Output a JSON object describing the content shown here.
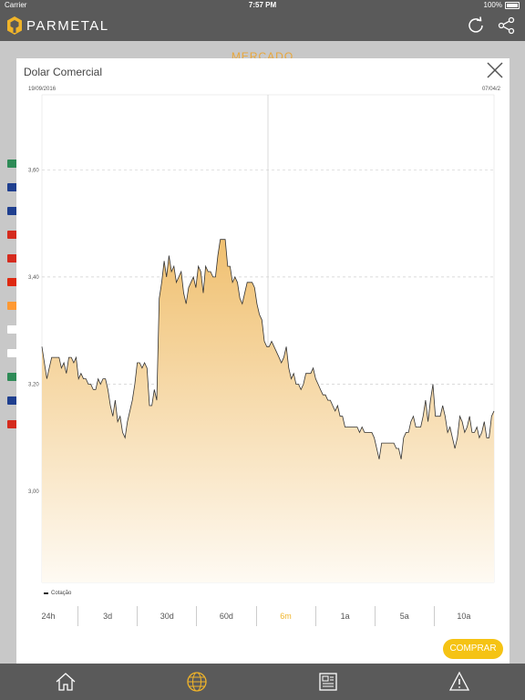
{
  "status_bar": {
    "carrier": "Carrier",
    "time": "7:57 PM",
    "battery": "100%"
  },
  "app": {
    "logo_text": "PARMETAL",
    "accent_color": "#f0b429",
    "bar_color": "#5a5a5a"
  },
  "nav": {
    "icons": [
      "refresh-icon",
      "share-icon"
    ]
  },
  "background_page": {
    "title": "MERCADO",
    "flag_colors": [
      "#2e8b57",
      "#1f3f8f",
      "#1f3f8f",
      "#d52b1e",
      "#d52b1e",
      "#de2910",
      "#ff9933",
      "#ffffff",
      "#ffffff",
      "#2e8b57",
      "#1f3f8f",
      "#d52b1e"
    ]
  },
  "modal": {
    "title": "Dolar Comercial",
    "date_start": "19/09/2016",
    "date_end": "07/04/2",
    "legend_label": "Cotação",
    "ranges": [
      {
        "label": "24h",
        "active": false
      },
      {
        "label": "3d",
        "active": false
      },
      {
        "label": "30d",
        "active": false
      },
      {
        "label": "60d",
        "active": false
      },
      {
        "label": "6m",
        "active": true
      },
      {
        "label": "1a",
        "active": false
      },
      {
        "label": "5a",
        "active": false
      },
      {
        "label": "10a",
        "active": false
      }
    ],
    "buy_button": "COMPRAR"
  },
  "chart_data": {
    "type": "area",
    "series": [
      {
        "name": "Cotação",
        "values": [
          3.27,
          3.24,
          3.21,
          3.23,
          3.25,
          3.25,
          3.25,
          3.25,
          3.23,
          3.24,
          3.22,
          3.25,
          3.25,
          3.24,
          3.25,
          3.21,
          3.22,
          3.21,
          3.21,
          3.2,
          3.2,
          3.19,
          3.19,
          3.21,
          3.2,
          3.21,
          3.21,
          3.19,
          3.16,
          3.14,
          3.17,
          3.13,
          3.14,
          3.11,
          3.1,
          3.13,
          3.15,
          3.17,
          3.2,
          3.24,
          3.24,
          3.23,
          3.24,
          3.23,
          3.16,
          3.16,
          3.19,
          3.17,
          3.36,
          3.39,
          3.43,
          3.4,
          3.44,
          3.41,
          3.42,
          3.39,
          3.4,
          3.41,
          3.37,
          3.35,
          3.38,
          3.39,
          3.4,
          3.38,
          3.42,
          3.41,
          3.37,
          3.42,
          3.41,
          3.41,
          3.4,
          3.4,
          3.44,
          3.47,
          3.47,
          3.47,
          3.42,
          3.42,
          3.39,
          3.4,
          3.39,
          3.36,
          3.35,
          3.37,
          3.39,
          3.39,
          3.39,
          3.38,
          3.35,
          3.33,
          3.32,
          3.28,
          3.27,
          3.27,
          3.28,
          3.27,
          3.26,
          3.25,
          3.24,
          3.25,
          3.27,
          3.23,
          3.21,
          3.22,
          3.2,
          3.2,
          3.19,
          3.2,
          3.22,
          3.22,
          3.22,
          3.23,
          3.21,
          3.2,
          3.19,
          3.18,
          3.18,
          3.17,
          3.17,
          3.16,
          3.15,
          3.16,
          3.14,
          3.14,
          3.12,
          3.12,
          3.12,
          3.12,
          3.12,
          3.12,
          3.11,
          3.12,
          3.11,
          3.11,
          3.11,
          3.11,
          3.1,
          3.08,
          3.06,
          3.09,
          3.09,
          3.09,
          3.09,
          3.09,
          3.09,
          3.08,
          3.08,
          3.06,
          3.1,
          3.11,
          3.11,
          3.13,
          3.14,
          3.12,
          3.12,
          3.12,
          3.14,
          3.17,
          3.13,
          3.17,
          3.2,
          3.14,
          3.14,
          3.14,
          3.16,
          3.14,
          3.11,
          3.12,
          3.1,
          3.08,
          3.1,
          3.14,
          3.13,
          3.11,
          3.12,
          3.14,
          3.11,
          3.11,
          3.12,
          3.1,
          3.11,
          3.13,
          3.1,
          3.1,
          3.14,
          3.15
        ]
      }
    ],
    "x_range": [
      "19/09/2016",
      "07/04/2"
    ],
    "y_ticks": [
      3.0,
      3.2,
      3.4,
      3.6
    ],
    "y_tick_labels": [
      "3,00",
      "3,20",
      "3,40",
      "3,60"
    ],
    "ylim": [
      2.83,
      3.74
    ],
    "grid": true,
    "legend_position": "bottom-left",
    "line_color": "#333333",
    "fill_color_top": "#f0c070",
    "fill_color_bottom": "#fefaf3"
  },
  "tabbar": {
    "tabs": [
      {
        "icon": "home-icon",
        "active": false
      },
      {
        "icon": "globe-icon",
        "active": true
      },
      {
        "icon": "newspaper-icon",
        "active": false
      },
      {
        "icon": "alert-icon",
        "active": false
      }
    ]
  }
}
